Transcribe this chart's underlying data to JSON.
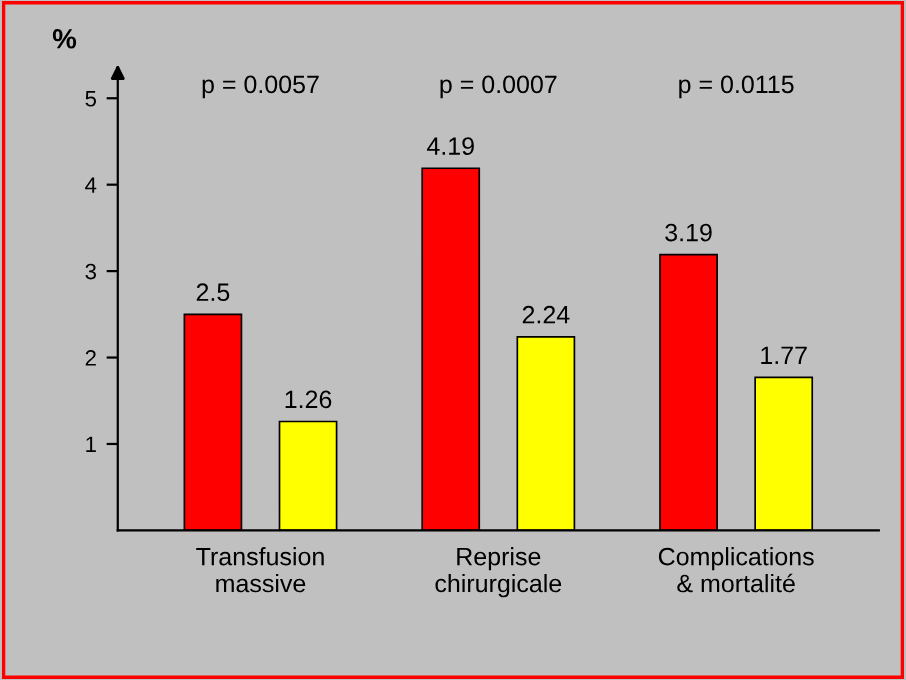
{
  "chart_data": {
    "type": "bar",
    "categories": [
      "Transfusion\nmassive",
      "Reprise\nchirurgicale",
      "Complications\n& mortalité"
    ],
    "series": [
      {
        "color": "#ff0000",
        "values": [
          2.5,
          4.19,
          3.19
        ]
      },
      {
        "color": "#ffff00",
        "values": [
          1.26,
          2.24,
          1.77
        ]
      }
    ],
    "ylabel": "%",
    "ylim": [
      0,
      5.35
    ],
    "yticks": [
      1,
      2,
      3,
      4,
      5
    ],
    "annotations": [
      "p = 0.0057",
      "p = 0.0007",
      "p = 0.0115"
    ],
    "data_labels": true,
    "grid": false,
    "legend": false
  }
}
